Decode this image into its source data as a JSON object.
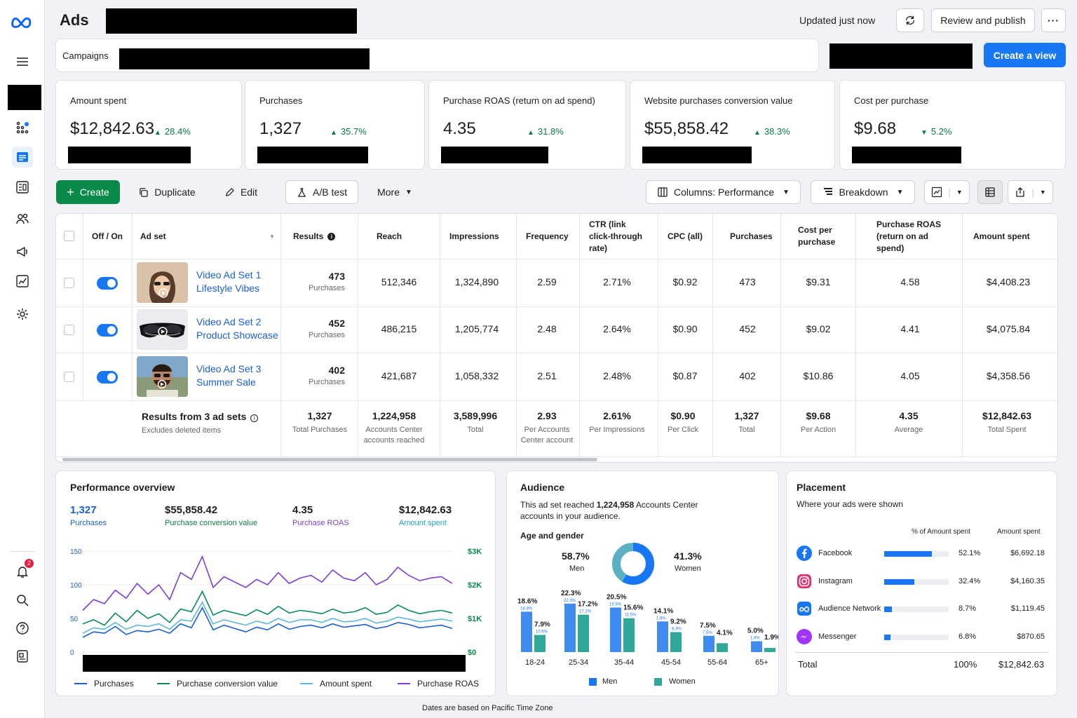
{
  "header": {
    "title": "Ads",
    "updated": "Updated just now",
    "review_publish": "Review and publish",
    "more_icon": "ellipsis-icon",
    "refresh_icon": "refresh-icon"
  },
  "campaign_bar": {
    "label": "Campaigns",
    "create_view": "Create a view"
  },
  "kpis": [
    {
      "label": "Amount spent",
      "value": "$12,842.63",
      "delta": "28.4%",
      "direction": "up"
    },
    {
      "label": "Purchases",
      "value": "1,327",
      "delta": "35.7%",
      "direction": "up"
    },
    {
      "label": "Purchase ROAS (return on ad spend)",
      "value": "4.35",
      "delta": "31.8%",
      "direction": "up"
    },
    {
      "label": "Website purchases conversion value",
      "value": "$55,858.42",
      "delta": "38.3%",
      "direction": "up"
    },
    {
      "label": "Cost per purchase",
      "value": "$9.68",
      "delta": "5.2%",
      "direction": "down"
    }
  ],
  "toolbar": {
    "create": "Create",
    "duplicate": "Duplicate",
    "edit": "Edit",
    "ab_test": "A/B test",
    "more": "More",
    "columns": "Columns: Performance",
    "breakdown": "Breakdown"
  },
  "table": {
    "headers": {
      "off_on": "Off / On",
      "ad_set": "Ad set",
      "results": "Results",
      "reach": "Reach",
      "impressions": "Impressions",
      "frequency": "Frequency",
      "ctr": "CTR (link click-through rate)",
      "cpc": "CPC (all)",
      "purchases": "Purchases",
      "cost_per_purchase": "Cost per purchase",
      "roas": "Purchase ROAS (return on ad spend)",
      "amount_spent": "Amount spent"
    },
    "rows": [
      {
        "name1": "Video Ad Set 1",
        "name2": "Lifestyle Vibes",
        "results": "473",
        "results_sub": "Purchases",
        "reach": "512,346",
        "impressions": "1,324,890",
        "frequency": "2.59",
        "ctr": "2.71%",
        "cpc": "$0.92",
        "purchases": "473",
        "cpp": "$9.31",
        "roas": "4.58",
        "spent": "$4,408.23",
        "on": true
      },
      {
        "name1": "Video Ad Set 2",
        "name2": "Product Showcase",
        "results": "452",
        "results_sub": "Purchases",
        "reach": "486,215",
        "impressions": "1,205,774",
        "frequency": "2.48",
        "ctr": "2.64%",
        "cpc": "$0.90",
        "purchases": "452",
        "cpp": "$9.02",
        "roas": "4.41",
        "spent": "$4,075.84",
        "on": true
      },
      {
        "name1": "Video Ad Set 3",
        "name2": "Summer Sale",
        "results": "402",
        "results_sub": "Purchases",
        "reach": "421,687",
        "impressions": "1,058,332",
        "frequency": "2.51",
        "ctr": "2.48%",
        "cpc": "$0.87",
        "purchases": "402",
        "cpp": "$10.86",
        "roas": "4.05",
        "spent": "$4,358.56",
        "on": true
      }
    ],
    "totals": {
      "label": "Results from 3 ad sets",
      "sub": "Excludes deleted items",
      "results": "1,327",
      "results_sub": "Total Purchases",
      "reach": "1,224,958",
      "reach_sub": "Accounts Center accounts reached",
      "impressions": "3,589,996",
      "impressions_sub": "Total",
      "frequency": "2.93",
      "frequency_sub": "Per Accounts Center account",
      "ctr": "2.61%",
      "ctr_sub": "Per Impressions",
      "cpc": "$0.90",
      "cpc_sub": "Per Click",
      "purchases": "1,327",
      "purchases_sub": "Total",
      "cpp": "$9.68",
      "cpp_sub": "Per Action",
      "roas": "4.35",
      "roas_sub": "Average",
      "spent": "$12,842.63",
      "spent_sub": "Total Spent"
    }
  },
  "performance": {
    "title": "Performance overview",
    "stats": [
      {
        "value": "1,327",
        "label": "Purchases",
        "color": "#1a5fd0"
      },
      {
        "value": "$55,858.42",
        "label": "Purchase conversion value",
        "color": "#0a7b42"
      },
      {
        "value": "4.35",
        "label": "Purchase ROAS",
        "color": "#7b3fd9"
      },
      {
        "value": "$12,842.63",
        "label": "Amount spent",
        "color": "#1fa2c7"
      }
    ]
  },
  "chart_data": {
    "type": "line",
    "left_ticks": [
      "150",
      "100",
      "50",
      "0"
    ],
    "ylim_left": [
      0,
      150
    ],
    "right_ticks": [
      "$3K",
      "$2K",
      "$1K",
      "$0"
    ],
    "ylim_right": [
      0,
      3000
    ],
    "grid": true,
    "legend_position": "bottom",
    "series": [
      {
        "name": "Purchases",
        "color": "#1a5fd0",
        "values": [
          22,
          30,
          28,
          38,
          26,
          32,
          30,
          34,
          28,
          42,
          36,
          66,
          33,
          40,
          35,
          30,
          37,
          33,
          42,
          34,
          38,
          40,
          36,
          42,
          37,
          39,
          41,
          35,
          38,
          44,
          41,
          36,
          38,
          40,
          35
        ]
      },
      {
        "name": "Purchase conversion value",
        "color": "#0a8a5a",
        "values": [
          42,
          48,
          40,
          58,
          45,
          62,
          50,
          57,
          44,
          64,
          60,
          90,
          55,
          62,
          58,
          54,
          63,
          56,
          68,
          58,
          62,
          60,
          57,
          64,
          58,
          60,
          66,
          56,
          59,
          70,
          62,
          57,
          60,
          62,
          58
        ]
      },
      {
        "name": "Amount spent",
        "color": "#5bb8d8",
        "values": [
          28,
          36,
          34,
          44,
          34,
          40,
          38,
          42,
          34,
          48,
          46,
          74,
          42,
          48,
          44,
          40,
          46,
          42,
          50,
          44,
          48,
          48,
          44,
          50,
          45,
          46,
          50,
          43,
          46,
          52,
          49,
          45,
          47,
          49,
          46
        ]
      },
      {
        "name": "Purchase ROAS",
        "color": "#7b3fd9",
        "values": [
          62,
          78,
          72,
          92,
          80,
          102,
          86,
          100,
          78,
          118,
          108,
          142,
          96,
          112,
          104,
          96,
          108,
          100,
          118,
          102,
          110,
          114,
          104,
          122,
          110,
          106,
          118,
          100,
          108,
          126,
          114,
          106,
          110,
          112,
          102
        ]
      }
    ]
  },
  "audience": {
    "title": "Audience",
    "desc_prefix": "This ad set reached",
    "desc_value": "1,224,958",
    "desc_suffix": "Accounts Center accounts in your audience.",
    "age_gender_label": "Age and gender",
    "men_pct": "58.7%",
    "men_label": "Men",
    "women_pct": "41.3%",
    "women_label": "Women",
    "donut": {
      "men": 58.7,
      "women": 41.3,
      "men_color": "#1877f2",
      "women_color": "#5bb0c4"
    },
    "groups": [
      {
        "age": "18-24",
        "men": 18.6,
        "women": 7.9,
        "men_label": "18.6%",
        "women_label": "7.9%",
        "men_small": "18.3%",
        "women_small": "10.6%"
      },
      {
        "age": "25-34",
        "men": 22.3,
        "women": 17.2,
        "men_label": "22.3%",
        "women_label": "17.2%",
        "men_small": "22.3%",
        "women_small": "17.2%"
      },
      {
        "age": "35-44",
        "men": 20.5,
        "women": 15.6,
        "men_label": "20.5%",
        "women_label": "15.6%",
        "men_small": "15.5%",
        "women_small": "11.5%"
      },
      {
        "age": "45-54",
        "men": 14.1,
        "women": 9.2,
        "men_label": "14.1%",
        "women_label": "9.2%",
        "men_small": "1.8%",
        "women_small": "8.3%"
      },
      {
        "age": "55-64",
        "men": 7.5,
        "women": 4.1,
        "men_label": "7.5%",
        "women_label": "4.1%",
        "men_small": "7.5%",
        "women_small": ""
      },
      {
        "age": "65+",
        "men": 5.0,
        "women": 1.9,
        "men_label": "5.0%",
        "women_label": "1.9%",
        "men_small": "1.9%",
        "women_small": ""
      }
    ],
    "legend_men": "Men",
    "legend_women": "Women"
  },
  "placement": {
    "title": "Placement",
    "subtitle": "Where your ads were shown",
    "col_pct": "% of Amount spent",
    "col_amount": "Amount spent",
    "rows": [
      {
        "name": "Facebook",
        "pct": 52.1,
        "pct_label": "52.1%",
        "amount": "$6,692.18",
        "icon": "facebook-icon",
        "color": "#1877f2"
      },
      {
        "name": "Instagram",
        "pct": 32.4,
        "pct_label": "32.4%",
        "amount": "$4,160.35",
        "icon": "instagram-icon",
        "color": "#e1306c"
      },
      {
        "name": "Audience Network",
        "pct": 8.7,
        "pct_label": "8.7%",
        "amount": "$1,119.45",
        "icon": "audience-network-icon",
        "color": "#1877f2"
      },
      {
        "name": "Messenger",
        "pct": 6.8,
        "pct_label": "6.8%",
        "amount": "$870.65",
        "icon": "messenger-icon",
        "color": "#a033ff"
      }
    ],
    "total_label": "Total",
    "total_pct": "100%",
    "total_amount": "$12,842.63"
  },
  "footer": {
    "note": "Dates are based on Pacific Time Zone"
  },
  "rail": {
    "notification_count": "2"
  }
}
